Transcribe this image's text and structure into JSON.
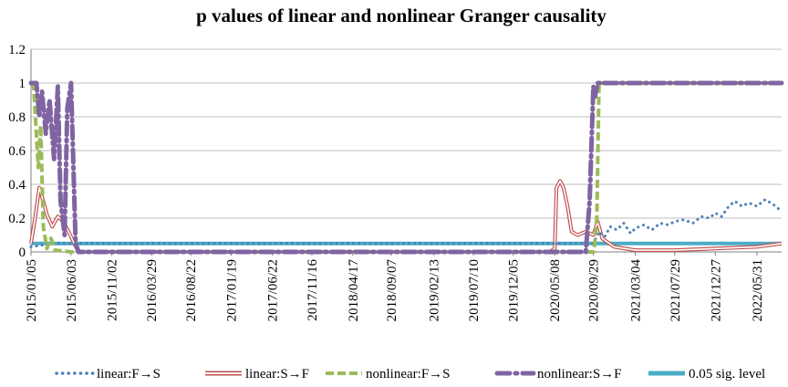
{
  "chart_data": {
    "type": "line",
    "title": "p values of linear and nonlinear Granger causality",
    "xlabel": "",
    "ylabel": "",
    "ylim": [
      0,
      1.2
    ],
    "yticks": [
      "0",
      "0.2",
      "0.4",
      "0.6",
      "0.8",
      "1",
      "1.2"
    ],
    "xlim": [
      "2015/01/05",
      "2022/08/31"
    ],
    "grid": "horizontal",
    "legend": "bottom",
    "x_tick_labels": [
      "2015/01/05",
      "2015/06/03",
      "2015/11/02",
      "2016/03/29",
      "2016/08/22",
      "2017/01/19",
      "2017/06/22",
      "2017/11/16",
      "2018/04/17",
      "2018/09/07",
      "2019/02/13",
      "2019/07/10",
      "2019/12/05",
      "2020/05/08",
      "2020/09/29",
      "2021/03/04",
      "2021/07/29",
      "2021/12/27",
      "2022/05/31"
    ],
    "series": [
      {
        "name": "linear:F→S",
        "color": "#4a7ebb",
        "style": "dotted",
        "points": [
          [
            "2015/01/05",
            0.03
          ],
          [
            "2015/02/15",
            0.04
          ],
          [
            "2015/04/01",
            0.05
          ],
          [
            "2015/06/03",
            0.05
          ],
          [
            "2015/07/01",
            0.05
          ],
          [
            "2020/09/29",
            0.05
          ],
          [
            "2020/10/20",
            0.12
          ],
          [
            "2020/11/10",
            0.09
          ],
          [
            "2020/12/01",
            0.15
          ],
          [
            "2020/12/25",
            0.13
          ],
          [
            "2021/01/20",
            0.17
          ],
          [
            "2021/02/15",
            0.11
          ],
          [
            "2021/03/04",
            0.14
          ],
          [
            "2021/04/05",
            0.16
          ],
          [
            "2021/05/05",
            0.13
          ],
          [
            "2021/06/05",
            0.17
          ],
          [
            "2021/07/05",
            0.16
          ],
          [
            "2021/07/29",
            0.18
          ],
          [
            "2021/09/01",
            0.19
          ],
          [
            "2021/10/05",
            0.17
          ],
          [
            "2021/11/05",
            0.21
          ],
          [
            "2021/12/05",
            0.2
          ],
          [
            "2021/12/27",
            0.23
          ],
          [
            "2022/01/20",
            0.21
          ],
          [
            "2022/02/15",
            0.27
          ],
          [
            "2022/03/10",
            0.3
          ],
          [
            "2022/04/05",
            0.27
          ],
          [
            "2022/05/01",
            0.29
          ],
          [
            "2022/05/31",
            0.27
          ],
          [
            "2022/07/01",
            0.31
          ],
          [
            "2022/08/01",
            0.28
          ],
          [
            "2022/08/31",
            0.24
          ]
        ]
      },
      {
        "name": "linear:S→F",
        "color": "#c0504d",
        "style": "double",
        "points": [
          [
            "2015/01/05",
            0.05
          ],
          [
            "2015/01/20",
            0.2
          ],
          [
            "2015/02/05",
            0.38
          ],
          [
            "2015/02/20",
            0.3
          ],
          [
            "2015/03/05",
            0.22
          ],
          [
            "2015/03/25",
            0.15
          ],
          [
            "2015/04/15",
            0.21
          ],
          [
            "2015/05/05",
            0.18
          ],
          [
            "2015/05/25",
            0.12
          ],
          [
            "2015/06/15",
            0.05
          ],
          [
            "2015/07/01",
            0.0
          ],
          [
            "2020/04/20",
            0.0
          ],
          [
            "2020/05/08",
            0.02
          ],
          [
            "2020/05/15",
            0.38
          ],
          [
            "2020/05/28",
            0.42
          ],
          [
            "2020/06/10",
            0.38
          ],
          [
            "2020/06/25",
            0.27
          ],
          [
            "2020/07/10",
            0.12
          ],
          [
            "2020/08/01",
            0.1
          ],
          [
            "2020/09/01",
            0.12
          ],
          [
            "2020/09/29",
            0.1
          ],
          [
            "2020/10/15",
            0.18
          ],
          [
            "2020/11/01",
            0.08
          ],
          [
            "2020/12/15",
            0.03
          ],
          [
            "2021/03/04",
            0.01
          ],
          [
            "2021/07/29",
            0.01
          ],
          [
            "2021/12/27",
            0.02
          ],
          [
            "2022/05/31",
            0.03
          ],
          [
            "2022/08/31",
            0.05
          ]
        ]
      },
      {
        "name": "nonlinear:F→S",
        "color": "#9bbb59",
        "style": "dashed",
        "points": [
          [
            "2015/01/05",
            1.0
          ],
          [
            "2015/01/15",
            0.98
          ],
          [
            "2015/02/01",
            0.5
          ],
          [
            "2015/02/10",
            0.75
          ],
          [
            "2015/02/20",
            0.15
          ],
          [
            "2015/03/05",
            0.02
          ],
          [
            "2015/03/20",
            0.08
          ],
          [
            "2015/04/05",
            0.01
          ],
          [
            "2015/06/03",
            0.0
          ],
          [
            "2020/10/01",
            0.0
          ],
          [
            "2020/10/12",
            0.2
          ],
          [
            "2020/10/20",
            1.0
          ],
          [
            "2022/08/31",
            1.0
          ]
        ]
      },
      {
        "name": "nonlinear:S→F",
        "color": "#8064a2",
        "style": "dashdot",
        "points": [
          [
            "2015/01/05",
            1.0
          ],
          [
            "2015/01/25",
            1.0
          ],
          [
            "2015/02/05",
            0.8
          ],
          [
            "2015/02/15",
            0.95
          ],
          [
            "2015/03/01",
            0.7
          ],
          [
            "2015/03/15",
            0.9
          ],
          [
            "2015/04/01",
            0.55
          ],
          [
            "2015/04/15",
            0.98
          ],
          [
            "2015/04/25",
            0.3
          ],
          [
            "2015/05/10",
            0.1
          ],
          [
            "2015/05/20",
            0.85
          ],
          [
            "2015/06/03",
            1.0
          ],
          [
            "2015/06/20",
            0.05
          ],
          [
            "2015/07/01",
            0.0
          ],
          [
            "2020/09/01",
            0.0
          ],
          [
            "2020/09/15",
            0.3
          ],
          [
            "2020/09/29",
            0.98
          ],
          [
            "2020/10/05",
            0.92
          ],
          [
            "2020/10/15",
            1.0
          ],
          [
            "2022/08/31",
            1.0
          ]
        ]
      },
      {
        "name": "0.05 sig. level",
        "color": "#4bacc6",
        "style": "solid",
        "points": [
          [
            "2015/01/05",
            0.05
          ],
          [
            "2022/08/31",
            0.05
          ]
        ]
      }
    ]
  }
}
